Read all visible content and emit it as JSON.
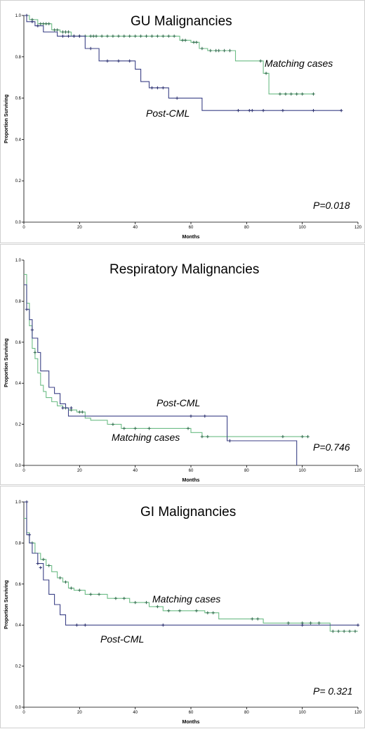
{
  "colors": {
    "matching": "#6dbd86",
    "post_cml": "#3c4287",
    "censor_matching": "#2e6b4b",
    "censor_post": "#2a2f6e"
  },
  "chart_data": [
    {
      "type": "line",
      "title": "GU Malignancies",
      "xlabel": "Months",
      "ylabel": "Proportion Surviving",
      "xlim": [
        0,
        120
      ],
      "ylim": [
        0,
        1.0
      ],
      "xticks": [
        "0",
        "20",
        "40",
        "60",
        "80",
        "100",
        "120"
      ],
      "yticks": [
        "0.0",
        "0.2",
        "0.4",
        "0.6",
        "0.8",
        "1.0"
      ],
      "p_value": "P=0.018",
      "grid": false,
      "series": [
        {
          "name": "Matching cases",
          "color_key": "matching",
          "steps": [
            [
              0,
              1.0
            ],
            [
              2,
              0.98
            ],
            [
              5,
              0.96
            ],
            [
              10,
              0.93
            ],
            [
              13,
              0.92
            ],
            [
              17,
              0.9
            ],
            [
              56,
              0.88
            ],
            [
              60,
              0.87
            ],
            [
              63,
              0.84
            ],
            [
              66,
              0.83
            ],
            [
              76,
              0.78
            ],
            [
              86,
              0.72
            ],
            [
              88,
              0.62
            ],
            [
              104,
              0.62
            ]
          ],
          "censors": [
            [
              3,
              0.98
            ],
            [
              6,
              0.96
            ],
            [
              7,
              0.96
            ],
            [
              8,
              0.96
            ],
            [
              9,
              0.96
            ],
            [
              11,
              0.93
            ],
            [
              12,
              0.93
            ],
            [
              14,
              0.92
            ],
            [
              15,
              0.92
            ],
            [
              16,
              0.92
            ],
            [
              18,
              0.9
            ],
            [
              20,
              0.9
            ],
            [
              22,
              0.9
            ],
            [
              24,
              0.9
            ],
            [
              25,
              0.9
            ],
            [
              26,
              0.9
            ],
            [
              28,
              0.9
            ],
            [
              30,
              0.9
            ],
            [
              32,
              0.9
            ],
            [
              34,
              0.9
            ],
            [
              36,
              0.9
            ],
            [
              38,
              0.9
            ],
            [
              40,
              0.9
            ],
            [
              42,
              0.9
            ],
            [
              44,
              0.9
            ],
            [
              46,
              0.9
            ],
            [
              48,
              0.9
            ],
            [
              50,
              0.9
            ],
            [
              52,
              0.9
            ],
            [
              54,
              0.9
            ],
            [
              57,
              0.88
            ],
            [
              58,
              0.88
            ],
            [
              61,
              0.87
            ],
            [
              62,
              0.87
            ],
            [
              64,
              0.84
            ],
            [
              67,
              0.83
            ],
            [
              69,
              0.83
            ],
            [
              70,
              0.83
            ],
            [
              72,
              0.83
            ],
            [
              74,
              0.83
            ],
            [
              85,
              0.78
            ],
            [
              87,
              0.72
            ],
            [
              92,
              0.62
            ],
            [
              94,
              0.62
            ],
            [
              96,
              0.62
            ],
            [
              98,
              0.62
            ],
            [
              100,
              0.62
            ],
            [
              104,
              0.62
            ]
          ]
        },
        {
          "name": "Post-CML",
          "color_key": "post_cml",
          "steps": [
            [
              0,
              1.0
            ],
            [
              1,
              0.97
            ],
            [
              4,
              0.95
            ],
            [
              7,
              0.92
            ],
            [
              12,
              0.9
            ],
            [
              22,
              0.84
            ],
            [
              27,
              0.78
            ],
            [
              40,
              0.74
            ],
            [
              42,
              0.68
            ],
            [
              45,
              0.65
            ],
            [
              52,
              0.6
            ],
            [
              64,
              0.54
            ],
            [
              114,
              0.54
            ]
          ],
          "censors": [
            [
              1,
              1.0
            ],
            [
              3,
              0.97
            ],
            [
              5,
              0.95
            ],
            [
              14,
              0.9
            ],
            [
              16,
              0.9
            ],
            [
              18,
              0.9
            ],
            [
              20,
              0.9
            ],
            [
              24,
              0.84
            ],
            [
              30,
              0.78
            ],
            [
              34,
              0.78
            ],
            [
              38,
              0.78
            ],
            [
              46,
              0.65
            ],
            [
              48,
              0.65
            ],
            [
              50,
              0.65
            ],
            [
              55,
              0.6
            ],
            [
              77,
              0.54
            ],
            [
              81,
              0.54
            ],
            [
              82,
              0.54
            ],
            [
              86,
              0.54
            ],
            [
              93,
              0.54
            ],
            [
              104,
              0.54
            ],
            [
              114,
              0.54
            ]
          ]
        }
      ]
    },
    {
      "type": "line",
      "title": "Respiratory Malignancies",
      "xlabel": "Months",
      "ylabel": "Proportion Surviving",
      "xlim": [
        0,
        120
      ],
      "ylim": [
        0,
        1.0
      ],
      "xticks": [
        "0",
        "20",
        "40",
        "60",
        "80",
        "100",
        "120"
      ],
      "yticks": [
        "0.0",
        "0.2",
        "0.4",
        "0.6",
        "0.8",
        "1.0"
      ],
      "p_value": "P=0.746",
      "grid": false,
      "series": [
        {
          "name": "Matching cases",
          "color_key": "matching",
          "steps": [
            [
              0,
              0.93
            ],
            [
              1,
              0.79
            ],
            [
              2,
              0.68
            ],
            [
              3,
              0.57
            ],
            [
              4,
              0.52
            ],
            [
              5,
              0.45
            ],
            [
              6,
              0.39
            ],
            [
              7,
              0.36
            ],
            [
              8,
              0.33
            ],
            [
              10,
              0.31
            ],
            [
              12,
              0.29
            ],
            [
              14,
              0.28
            ],
            [
              16,
              0.27
            ],
            [
              19,
              0.26
            ],
            [
              22,
              0.23
            ],
            [
              24,
              0.22
            ],
            [
              30,
              0.2
            ],
            [
              35,
              0.18
            ],
            [
              60,
              0.16
            ],
            [
              64,
              0.14
            ],
            [
              102,
              0.14
            ]
          ],
          "censors": [
            [
              4,
              0.55
            ],
            [
              15,
              0.28
            ],
            [
              17,
              0.27
            ],
            [
              20,
              0.26
            ],
            [
              21,
              0.26
            ],
            [
              32,
              0.2
            ],
            [
              36,
              0.18
            ],
            [
              40,
              0.18
            ],
            [
              45,
              0.18
            ],
            [
              59,
              0.18
            ],
            [
              64,
              0.14
            ],
            [
              66,
              0.14
            ],
            [
              93,
              0.14
            ],
            [
              100,
              0.14
            ],
            [
              102,
              0.14
            ]
          ]
        },
        {
          "name": "Post-CML",
          "color_key": "post_cml",
          "steps": [
            [
              0,
              0.88
            ],
            [
              1,
              0.76
            ],
            [
              2,
              0.71
            ],
            [
              3,
              0.62
            ],
            [
              5,
              0.55
            ],
            [
              6,
              0.46
            ],
            [
              9,
              0.38
            ],
            [
              11,
              0.35
            ],
            [
              13,
              0.3
            ],
            [
              15,
              0.28
            ],
            [
              16,
              0.24
            ],
            [
              73,
              0.12
            ],
            [
              98,
              0.0
            ]
          ],
          "censors": [
            [
              1,
              0.76
            ],
            [
              3,
              0.66
            ],
            [
              14,
              0.28
            ],
            [
              17,
              0.28
            ],
            [
              60,
              0.24
            ],
            [
              65,
              0.24
            ],
            [
              74,
              0.12
            ]
          ]
        }
      ]
    },
    {
      "type": "line",
      "title": "GI Malignancies",
      "xlabel": "Months",
      "ylabel": "Proportion Surviving",
      "xlim": [
        0,
        120
      ],
      "ylim": [
        0,
        1.0
      ],
      "xticks": [
        "0",
        "20",
        "40",
        "60",
        "80",
        "100",
        "120"
      ],
      "yticks": [
        "0.0",
        "0.2",
        "0.4",
        "0.6",
        "0.8",
        "1.0"
      ],
      "p_value": "P= 0.321",
      "grid": false,
      "series": [
        {
          "name": "Matching cases",
          "color_key": "matching",
          "steps": [
            [
              0,
              0.92
            ],
            [
              1,
              0.85
            ],
            [
              2,
              0.8
            ],
            [
              4,
              0.75
            ],
            [
              6,
              0.72
            ],
            [
              8,
              0.69
            ],
            [
              10,
              0.66
            ],
            [
              12,
              0.63
            ],
            [
              14,
              0.61
            ],
            [
              16,
              0.58
            ],
            [
              18,
              0.57
            ],
            [
              22,
              0.55
            ],
            [
              30,
              0.53
            ],
            [
              38,
              0.51
            ],
            [
              45,
              0.49
            ],
            [
              50,
              0.47
            ],
            [
              58,
              0.47
            ],
            [
              65,
              0.46
            ],
            [
              70,
              0.43
            ],
            [
              86,
              0.41
            ],
            [
              110,
              0.37
            ],
            [
              120,
              0.37
            ]
          ],
          "censors": [
            [
              3,
              0.8
            ],
            [
              7,
              0.72
            ],
            [
              9,
              0.69
            ],
            [
              13,
              0.63
            ],
            [
              15,
              0.61
            ],
            [
              17,
              0.58
            ],
            [
              20,
              0.57
            ],
            [
              24,
              0.55
            ],
            [
              27,
              0.55
            ],
            [
              33,
              0.53
            ],
            [
              36,
              0.53
            ],
            [
              40,
              0.51
            ],
            [
              44,
              0.51
            ],
            [
              48,
              0.49
            ],
            [
              52,
              0.47
            ],
            [
              56,
              0.47
            ],
            [
              62,
              0.47
            ],
            [
              66,
              0.46
            ],
            [
              68,
              0.46
            ],
            [
              82,
              0.43
            ],
            [
              84,
              0.43
            ],
            [
              95,
              0.41
            ],
            [
              100,
              0.41
            ],
            [
              103,
              0.41
            ],
            [
              106,
              0.41
            ],
            [
              111,
              0.37
            ],
            [
              113,
              0.37
            ],
            [
              115,
              0.37
            ],
            [
              117,
              0.37
            ],
            [
              119,
              0.37
            ]
          ]
        },
        {
          "name": "Post-CML",
          "color_key": "post_cml",
          "steps": [
            [
              0,
              1.0
            ],
            [
              1,
              0.84
            ],
            [
              2,
              0.8
            ],
            [
              3,
              0.75
            ],
            [
              5,
              0.7
            ],
            [
              7,
              0.62
            ],
            [
              9,
              0.55
            ],
            [
              11,
              0.5
            ],
            [
              13,
              0.45
            ],
            [
              15,
              0.4
            ],
            [
              120,
              0.4
            ]
          ],
          "censors": [
            [
              1,
              1.0
            ],
            [
              2,
              0.84
            ],
            [
              5,
              0.7
            ],
            [
              6,
              0.68
            ],
            [
              19,
              0.4
            ],
            [
              22,
              0.4
            ],
            [
              50,
              0.4
            ],
            [
              100,
              0.4
            ],
            [
              120,
              0.4
            ]
          ]
        }
      ]
    }
  ]
}
